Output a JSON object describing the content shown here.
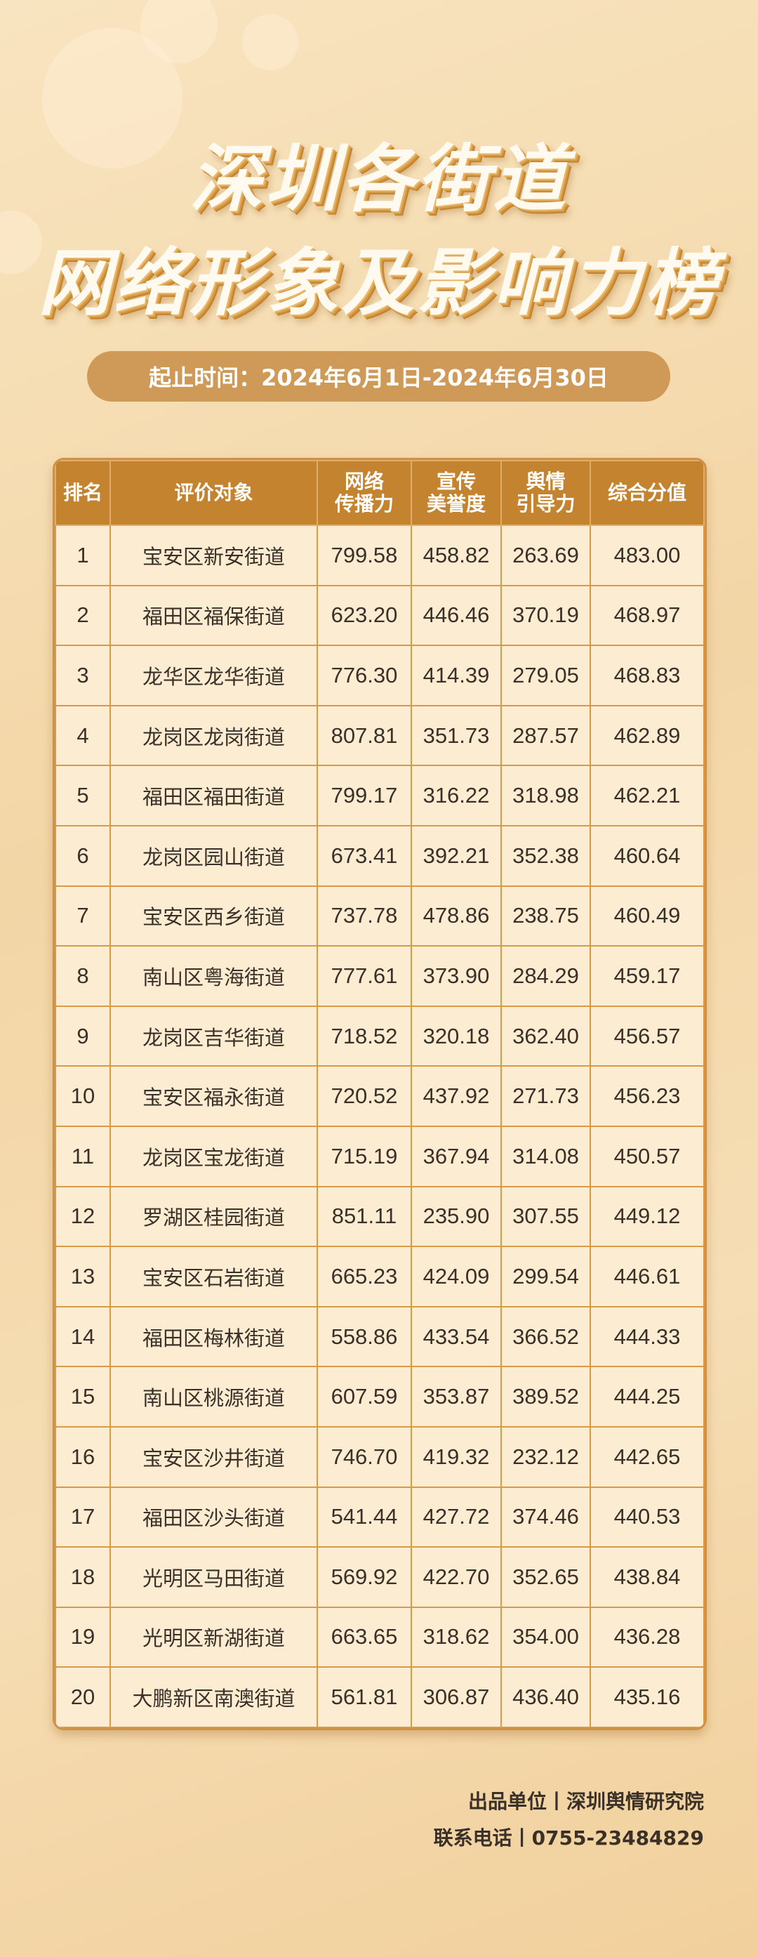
{
  "title": {
    "line1": "深圳各街道",
    "line2": "网络形象及影响力榜"
  },
  "date_range": "起止时间：2024年6月1日-2024年6月30日",
  "table": {
    "headers": [
      "排名",
      "评价对象",
      "网络\n传播力",
      "宣传\n美誉度",
      "舆情\n引导力",
      "综合分值"
    ],
    "rows": [
      [
        "1",
        "宝安区新安街道",
        "799.58",
        "458.82",
        "263.69",
        "483.00"
      ],
      [
        "2",
        "福田区福保街道",
        "623.20",
        "446.46",
        "370.19",
        "468.97"
      ],
      [
        "3",
        "龙华区龙华街道",
        "776.30",
        "414.39",
        "279.05",
        "468.83"
      ],
      [
        "4",
        "龙岗区龙岗街道",
        "807.81",
        "351.73",
        "287.57",
        "462.89"
      ],
      [
        "5",
        "福田区福田街道",
        "799.17",
        "316.22",
        "318.98",
        "462.21"
      ],
      [
        "6",
        "龙岗区园山街道",
        "673.41",
        "392.21",
        "352.38",
        "460.64"
      ],
      [
        "7",
        "宝安区西乡街道",
        "737.78",
        "478.86",
        "238.75",
        "460.49"
      ],
      [
        "8",
        "南山区粤海街道",
        "777.61",
        "373.90",
        "284.29",
        "459.17"
      ],
      [
        "9",
        "龙岗区吉华街道",
        "718.52",
        "320.18",
        "362.40",
        "456.57"
      ],
      [
        "10",
        "宝安区福永街道",
        "720.52",
        "437.92",
        "271.73",
        "456.23"
      ],
      [
        "11",
        "龙岗区宝龙街道",
        "715.19",
        "367.94",
        "314.08",
        "450.57"
      ],
      [
        "12",
        "罗湖区桂园街道",
        "851.11",
        "235.90",
        "307.55",
        "449.12"
      ],
      [
        "13",
        "宝安区石岩街道",
        "665.23",
        "424.09",
        "299.54",
        "446.61"
      ],
      [
        "14",
        "福田区梅林街道",
        "558.86",
        "433.54",
        "366.52",
        "444.33"
      ],
      [
        "15",
        "南山区桃源街道",
        "607.59",
        "353.87",
        "389.52",
        "444.25"
      ],
      [
        "16",
        "宝安区沙井街道",
        "746.70",
        "419.32",
        "232.12",
        "442.65"
      ],
      [
        "17",
        "福田区沙头街道",
        "541.44",
        "427.72",
        "374.46",
        "440.53"
      ],
      [
        "18",
        "光明区马田街道",
        "569.92",
        "422.70",
        "352.65",
        "438.84"
      ],
      [
        "19",
        "光明区新湖街道",
        "663.65",
        "318.62",
        "354.00",
        "436.28"
      ],
      [
        "20",
        "大鹏新区南澳街道",
        "561.81",
        "306.87",
        "436.40",
        "435.16"
      ]
    ]
  },
  "footer": {
    "producer": "出品单位丨深圳舆情研究院",
    "contact": "联系电话丨0755-23484829"
  },
  "colors": {
    "header": "#c4842f",
    "cell": "#fbecd2",
    "border": "#d99a45",
    "pill": "#cf9a58"
  }
}
